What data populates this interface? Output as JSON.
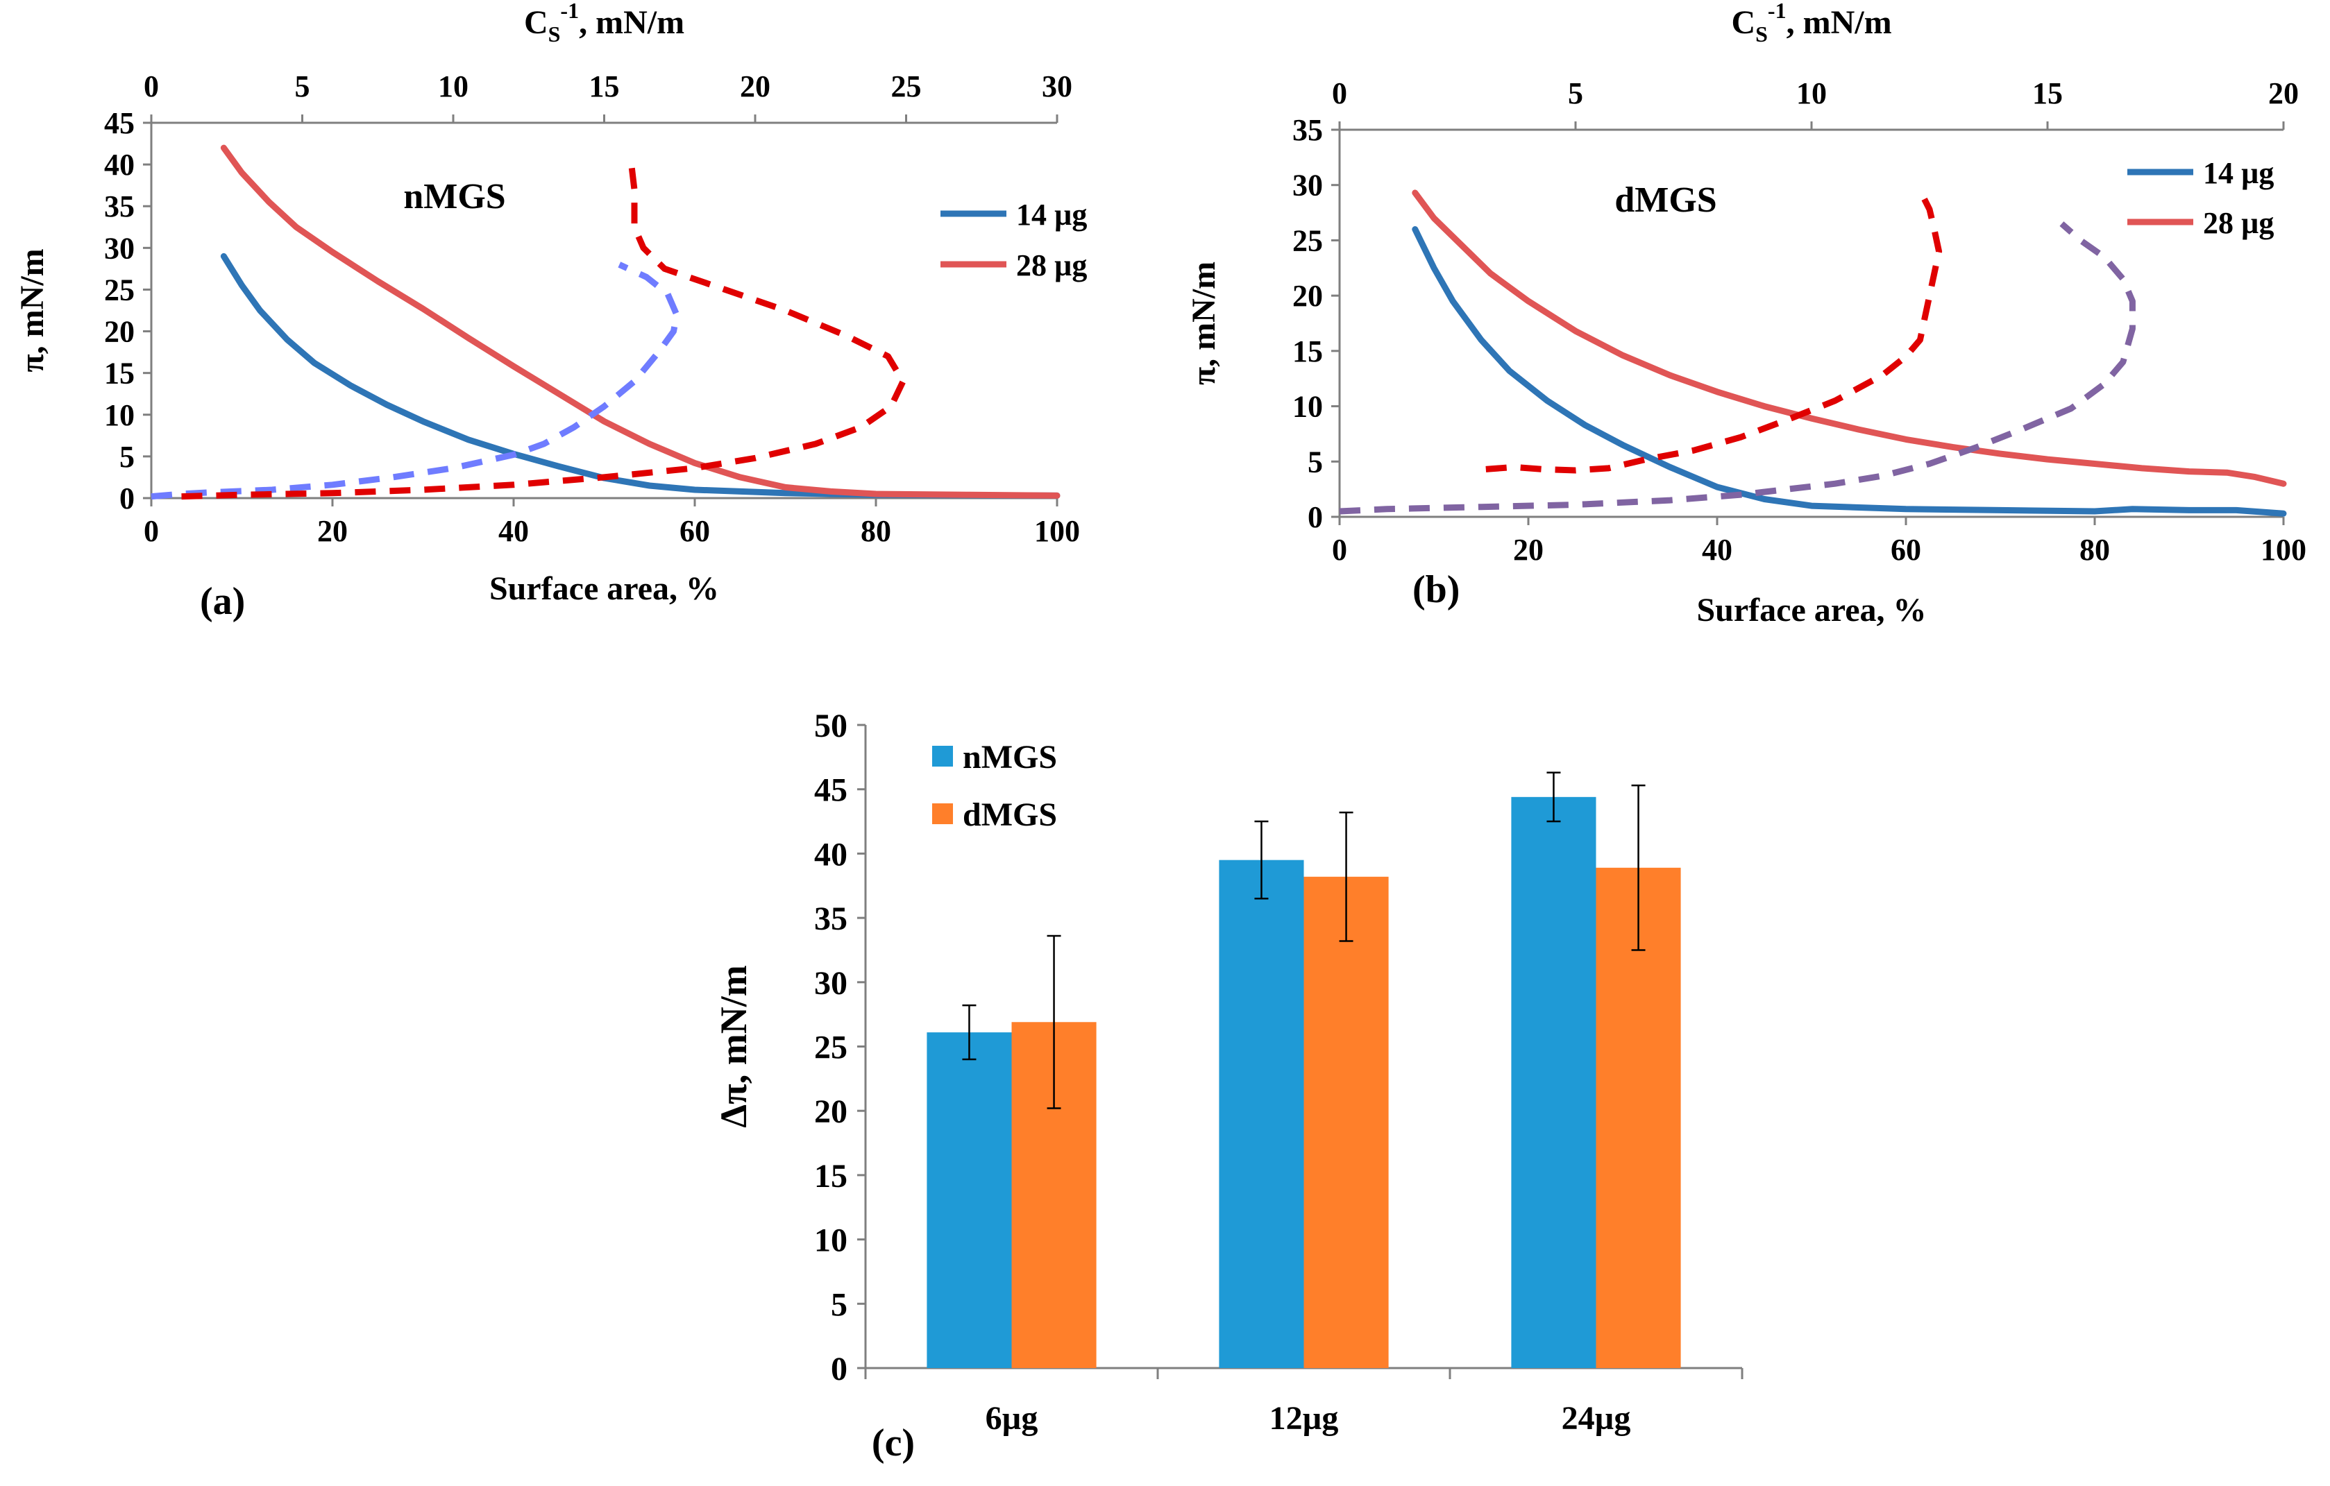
{
  "chart_data": [
    {
      "id": "a",
      "type": "line",
      "panel_label": "(a)",
      "annotation": "nMGS",
      "xlabel": "Surface area, %",
      "ylabel": "π, mN/m",
      "x2label_main": "C",
      "x2label_sub": "S",
      "x2label_sup": "-1",
      "x2label_rest": ", mN/m",
      "xlim": [
        0,
        100
      ],
      "ylim": [
        0,
        45
      ],
      "x2lim": [
        0,
        30
      ],
      "xticks": [
        0,
        20,
        40,
        60,
        80,
        100
      ],
      "yticks": [
        0,
        5,
        10,
        15,
        20,
        25,
        30,
        35,
        40,
        45
      ],
      "x2ticks": [
        0,
        5,
        10,
        15,
        20,
        25,
        30
      ],
      "legend": [
        {
          "label": "14 µg",
          "color": "#2e75b6"
        },
        {
          "label": "28 µg",
          "color": "#e05555"
        }
      ],
      "series": [
        {
          "name": "14 µg",
          "axis": "x",
          "style": "solid",
          "color": "#2e75b6",
          "points": [
            [
              8,
              29
            ],
            [
              10,
              25.5
            ],
            [
              12,
              22.5
            ],
            [
              15,
              19
            ],
            [
              18,
              16.2
            ],
            [
              22,
              13.5
            ],
            [
              26,
              11.2
            ],
            [
              30,
              9.2
            ],
            [
              35,
              7
            ],
            [
              40,
              5.3
            ],
            [
              45,
              3.8
            ],
            [
              50,
              2.4
            ],
            [
              55,
              1.5
            ],
            [
              60,
              1
            ],
            [
              70,
              0.6
            ],
            [
              80,
              0.4
            ],
            [
              100,
              0.3
            ]
          ]
        },
        {
          "name": "28 µg",
          "axis": "x",
          "style": "solid",
          "color": "#e05555",
          "points": [
            [
              8,
              42
            ],
            [
              10,
              39
            ],
            [
              13,
              35.5
            ],
            [
              16,
              32.5
            ],
            [
              20,
              29.5
            ],
            [
              25,
              26
            ],
            [
              30,
              22.7
            ],
            [
              35,
              19.2
            ],
            [
              40,
              15.8
            ],
            [
              45,
              12.5
            ],
            [
              50,
              9.2
            ],
            [
              55,
              6.5
            ],
            [
              60,
              4.2
            ],
            [
              65,
              2.5
            ],
            [
              70,
              1.3
            ],
            [
              75,
              0.8
            ],
            [
              80,
              0.5
            ],
            [
              90,
              0.4
            ],
            [
              100,
              0.3
            ]
          ]
        },
        {
          "name": "Cs-1 14 µg",
          "axis": "x2",
          "style": "dashed",
          "color": "#6f7cff",
          "points": [
            [
              0,
              0.2
            ],
            [
              1,
              0.5
            ],
            [
              2,
              0.7
            ],
            [
              4,
              1
            ],
            [
              6,
              1.6
            ],
            [
              8,
              2.5
            ],
            [
              10,
              3.6
            ],
            [
              12,
              5.2
            ],
            [
              13,
              6.5
            ],
            [
              14,
              8.5
            ],
            [
              15,
              11
            ],
            [
              16,
              14
            ],
            [
              16.8,
              17.5
            ],
            [
              17.3,
              20
            ],
            [
              17.4,
              22
            ],
            [
              17.1,
              24.5
            ],
            [
              16.4,
              26.5
            ],
            [
              15.5,
              28
            ]
          ]
        },
        {
          "name": "Cs-1 28 µg",
          "axis": "x2",
          "style": "dashed",
          "color": "#e00000",
          "points": [
            [
              1,
              0.2
            ],
            [
              3,
              0.4
            ],
            [
              6,
              0.6
            ],
            [
              9,
              1
            ],
            [
              12,
              1.6
            ],
            [
              15,
              2.5
            ],
            [
              18,
              3.6
            ],
            [
              20,
              4.8
            ],
            [
              22,
              6.5
            ],
            [
              23.5,
              8.5
            ],
            [
              24.5,
              11
            ],
            [
              24.9,
              14
            ],
            [
              24.4,
              17
            ],
            [
              23,
              19.5
            ],
            [
              21,
              22.5
            ],
            [
              19,
              25
            ],
            [
              17,
              27.5
            ],
            [
              16.3,
              30
            ],
            [
              16,
              32.5
            ],
            [
              16,
              35
            ],
            [
              16,
              37
            ],
            [
              15.9,
              40
            ]
          ]
        }
      ]
    },
    {
      "id": "b",
      "type": "line",
      "panel_label": "(b)",
      "annotation": "dMGS",
      "xlabel": "Surface area, %",
      "ylabel": "π, mN/m",
      "x2label_main": "C",
      "x2label_sub": "S",
      "x2label_sup": "-1",
      "x2label_rest": ", mN/m",
      "xlim": [
        0,
        100
      ],
      "ylim": [
        0,
        35
      ],
      "x2lim": [
        0,
        20
      ],
      "xticks": [
        0,
        20,
        40,
        60,
        80,
        100
      ],
      "yticks": [
        0,
        5,
        10,
        15,
        20,
        25,
        30,
        35
      ],
      "x2ticks": [
        0,
        5,
        10,
        15,
        20
      ],
      "legend": [
        {
          "label": "14 µg",
          "color": "#2e75b6"
        },
        {
          "label": "28 µg",
          "color": "#e05555"
        }
      ],
      "series": [
        {
          "name": "14 µg",
          "axis": "x",
          "style": "solid",
          "color": "#2e75b6",
          "points": [
            [
              8,
              26
            ],
            [
              10,
              22.5
            ],
            [
              12,
              19.5
            ],
            [
              15,
              16
            ],
            [
              18,
              13.2
            ],
            [
              22,
              10.5
            ],
            [
              26,
              8.3
            ],
            [
              30,
              6.5
            ],
            [
              35,
              4.5
            ],
            [
              40,
              2.7
            ],
            [
              45,
              1.6
            ],
            [
              50,
              1
            ],
            [
              60,
              0.7
            ],
            [
              70,
              0.6
            ],
            [
              80,
              0.5
            ],
            [
              84,
              0.7
            ],
            [
              90,
              0.6
            ],
            [
              95,
              0.6
            ],
            [
              100,
              0.3
            ]
          ]
        },
        {
          "name": "28 µg",
          "axis": "x",
          "style": "solid",
          "color": "#e05555",
          "points": [
            [
              8,
              29.3
            ],
            [
              10,
              27
            ],
            [
              13,
              24.5
            ],
            [
              16,
              22
            ],
            [
              20,
              19.5
            ],
            [
              25,
              16.8
            ],
            [
              30,
              14.6
            ],
            [
              35,
              12.8
            ],
            [
              40,
              11.3
            ],
            [
              45,
              10
            ],
            [
              50,
              8.9
            ],
            [
              55,
              7.9
            ],
            [
              60,
              7
            ],
            [
              65,
              6.3
            ],
            [
              70,
              5.7
            ],
            [
              75,
              5.2
            ],
            [
              80,
              4.8
            ],
            [
              85,
              4.4
            ],
            [
              90,
              4.1
            ],
            [
              94,
              4
            ],
            [
              97,
              3.6
            ],
            [
              100,
              3
            ]
          ]
        },
        {
          "name": "Cs-1 14 µg",
          "axis": "x2",
          "style": "dashed",
          "color": "#8064a2",
          "points": [
            [
              0,
              0.5
            ],
            [
              1,
              0.7
            ],
            [
              3,
              0.9
            ],
            [
              5,
              1.1
            ],
            [
              7,
              1.5
            ],
            [
              8.5,
              2
            ],
            [
              9.5,
              2.5
            ],
            [
              10.5,
              3
            ],
            [
              11.5,
              3.7
            ],
            [
              12.5,
              4.8
            ],
            [
              13.5,
              6.3
            ],
            [
              14.5,
              8
            ],
            [
              15.5,
              9.8
            ],
            [
              16.2,
              12
            ],
            [
              16.6,
              14
            ],
            [
              16.8,
              17
            ],
            [
              16.8,
              19.5
            ],
            [
              16.6,
              21.5
            ],
            [
              16.2,
              23.5
            ],
            [
              15.7,
              25
            ],
            [
              15.3,
              26.5
            ]
          ]
        },
        {
          "name": "Cs-1 28 µg",
          "axis": "x2",
          "style": "dashed",
          "color": "#e00000",
          "points": [
            [
              3.1,
              4.3
            ],
            [
              3.7,
              4.5
            ],
            [
              4.3,
              4.3
            ],
            [
              5,
              4.2
            ],
            [
              5.7,
              4.4
            ],
            [
              6.5,
              5.2
            ],
            [
              7.5,
              6
            ],
            [
              8.5,
              7.2
            ],
            [
              9.5,
              8.8
            ],
            [
              10.5,
              10.5
            ],
            [
              11.5,
              12.8
            ],
            [
              12,
              14.5
            ],
            [
              12.3,
              16
            ],
            [
              12.4,
              18
            ],
            [
              12.5,
              20
            ],
            [
              12.6,
              22
            ],
            [
              12.7,
              24
            ],
            [
              12.6,
              26
            ],
            [
              12.5,
              27.8
            ],
            [
              12.3,
              29.5
            ]
          ]
        }
      ]
    },
    {
      "id": "c",
      "type": "bar",
      "panel_label": "(c)",
      "ylabel": "Δπ, mN/m",
      "ylim": [
        0,
        50
      ],
      "yticks": [
        0,
        5,
        10,
        15,
        20,
        25,
        30,
        35,
        40,
        45,
        50
      ],
      "categories": [
        "6µg",
        "12µg",
        "24µg"
      ],
      "series": [
        {
          "name": "nMGS",
          "color": "#1f9ad6",
          "values": [
            26.1,
            39.5,
            44.4
          ],
          "errors": [
            2.1,
            3.0,
            1.9
          ]
        },
        {
          "name": "dMGS",
          "color": "#ff7f2a",
          "values": [
            26.9,
            38.2,
            38.9
          ],
          "errors": [
            6.7,
            5.0,
            6.4
          ]
        }
      ]
    }
  ]
}
